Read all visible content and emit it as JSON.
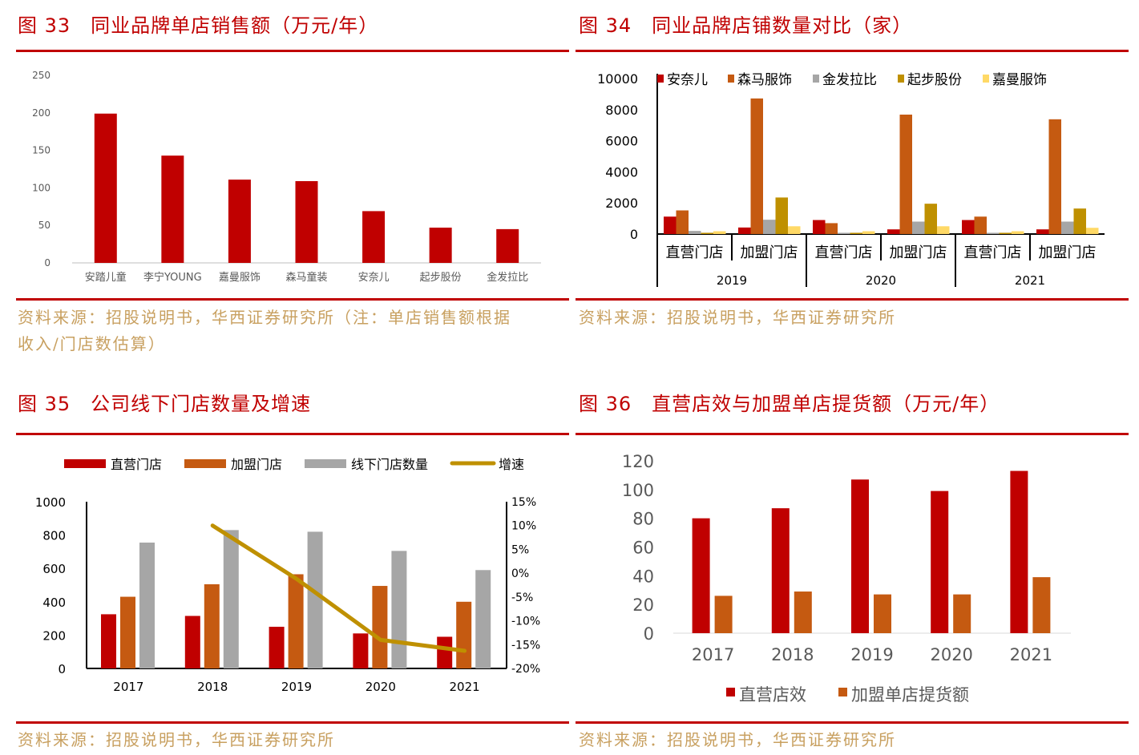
{
  "colors": {
    "red": "#c00000",
    "orange": "#c55a11",
    "gray": "#a6a6a6",
    "gold": "#bf9000",
    "yellow": "#ffd966",
    "source": "#c8a060"
  },
  "panels": [
    {
      "title": "图 33　同业品牌单店销售额（万元/年）",
      "source": "资料来源：招股说明书，华西证券研究所（注：单店销售额根据",
      "source2": "收入/门店数估算）"
    },
    {
      "title": "图 34　同业品牌店铺数量对比（家）",
      "source": "资料来源：招股说明书，华西证券研究所"
    },
    {
      "title": "图 35　公司线下门店数量及增速",
      "source": "资料来源：招股说明书，华西证券研究所"
    },
    {
      "title": "图 36　直营店效与加盟单店提货额（万元/年）",
      "source": "资料来源：招股说明书，华西证券研究所"
    }
  ],
  "chart_data": [
    {
      "type": "bar",
      "categories": [
        "安踏儿童",
        "李宁YOUNG",
        "嘉曼服饰",
        "森马童装",
        "安奈儿",
        "起步股份",
        "金发拉比"
      ],
      "values": [
        199,
        143,
        111,
        109,
        69,
        47,
        45
      ],
      "ylim": [
        0,
        250
      ],
      "yticks": [
        0,
        50,
        100,
        150,
        200,
        250
      ],
      "grid": false
    },
    {
      "type": "bar",
      "groups": [
        "2019",
        "2020",
        "2021"
      ],
      "categories": [
        "直营门店",
        "加盟门店",
        "直营门店",
        "加盟门店",
        "直营门店",
        "加盟门店"
      ],
      "series": [
        {
          "name": "安奈儿",
          "values": [
            1120,
            420,
            900,
            300,
            900,
            300
          ]
        },
        {
          "name": "森马服饰",
          "values": [
            1520,
            8720,
            700,
            7680,
            1120,
            7380
          ]
        },
        {
          "name": "金发拉比",
          "values": [
            200,
            920,
            80,
            800,
            80,
            800
          ]
        },
        {
          "name": "起步股份",
          "values": [
            80,
            2350,
            80,
            1950,
            80,
            1640
          ]
        },
        {
          "name": "嘉曼服饰",
          "values": [
            180,
            500,
            180,
            500,
            180,
            400
          ]
        }
      ],
      "ylim": [
        0,
        10000
      ],
      "yticks": [
        0,
        2000,
        4000,
        6000,
        8000,
        10000
      ],
      "legend": "top",
      "grid": false
    },
    {
      "type": "bar+line",
      "categories": [
        "2017",
        "2018",
        "2019",
        "2020",
        "2021"
      ],
      "series": [
        {
          "name": "直营门店",
          "values": [
            325,
            315,
            250,
            210,
            190
          ]
        },
        {
          "name": "加盟门店",
          "values": [
            430,
            505,
            565,
            495,
            400
          ]
        },
        {
          "name": "线下门店数量",
          "values": [
            755,
            830,
            820,
            705,
            590
          ]
        },
        {
          "name": "增速",
          "type": "line",
          "axis": "right",
          "values": [
            null,
            10,
            -1.2,
            -14,
            -16.3
          ]
        }
      ],
      "ylim": [
        0,
        1000
      ],
      "yticks": [
        0,
        200,
        400,
        600,
        800,
        1000
      ],
      "y2lim": [
        -20,
        15
      ],
      "y2ticks": [
        "-20%",
        "-15%",
        "-10%",
        "-5%",
        "0%",
        "5%",
        "10%",
        "15%"
      ],
      "legend": "top",
      "grid": false
    },
    {
      "type": "bar",
      "categories": [
        "2017",
        "2018",
        "2019",
        "2020",
        "2021"
      ],
      "series": [
        {
          "name": "直营店效",
          "values": [
            80,
            87,
            107,
            99,
            113
          ]
        },
        {
          "name": "加盟单店提货额",
          "values": [
            26,
            29,
            27,
            27,
            39
          ]
        }
      ],
      "ylim": [
        0,
        120
      ],
      "yticks": [
        0,
        20,
        40,
        60,
        80,
        100,
        120
      ],
      "legend": "bottom",
      "grid": false
    }
  ]
}
